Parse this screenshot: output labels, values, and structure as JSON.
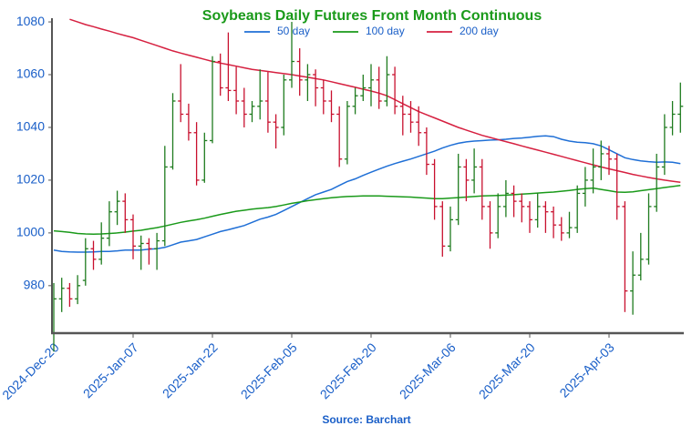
{
  "chart_data": {
    "type": "ohlc",
    "title": "Soybeans Daily Futures Front Month Continuous",
    "source": "Source: Barchart",
    "categories": [
      "2024-Dec-20",
      null,
      null,
      null,
      null,
      null,
      null,
      null,
      null,
      null,
      "2025-Jan-07",
      null,
      null,
      null,
      null,
      null,
      null,
      null,
      null,
      null,
      "2025-Jan-22",
      null,
      null,
      null,
      null,
      null,
      null,
      null,
      null,
      null,
      "2025-Feb-05",
      null,
      null,
      null,
      null,
      null,
      null,
      null,
      null,
      null,
      "2025-Feb-20",
      null,
      null,
      null,
      null,
      null,
      null,
      null,
      null,
      null,
      "2025-Mar-06",
      null,
      null,
      null,
      null,
      null,
      null,
      null,
      null,
      null,
      "2025-Mar-20",
      null,
      null,
      null,
      null,
      null,
      null,
      null,
      null,
      null,
      "2025-Apr-03",
      null,
      null,
      null,
      null,
      null,
      null,
      null,
      null,
      null
    ],
    "open": [
      962,
      975,
      979,
      975,
      982,
      994,
      990,
      998,
      1008,
      1012,
      1005,
      995,
      996,
      994,
      997,
      1025,
      1050,
      1045,
      1038,
      1020,
      1035,
      1065,
      1055,
      1054,
      1050,
      1045,
      1048,
      1050,
      1042,
      1040,
      1058,
      1065,
      1058,
      1060,
      1055,
      1050,
      1045,
      1028,
      1048,
      1052,
      1055,
      1058,
      1050,
      1060,
      1048,
      1045,
      1042,
      1038,
      1026,
      1010,
      995,
      1005,
      1025,
      1020,
      1025,
      1010,
      1000,
      1010,
      1015,
      1012,
      1010,
      1005,
      1010,
      1008,
      1003,
      1000,
      1002,
      1015,
      1020,
      1025,
      1030,
      1028,
      1010,
      978,
      984,
      990,
      1010,
      1025,
      1040,
      1045
    ],
    "high": [
      981,
      983,
      981,
      984,
      998,
      997,
      1004,
      1012,
      1016,
      1015,
      1007,
      999,
      998,
      1000,
      1033,
      1053,
      1064,
      1049,
      1042,
      1038,
      1067,
      1068,
      1076,
      1063,
      1055,
      1050,
      1062,
      1061,
      1045,
      1060,
      1080,
      1070,
      1064,
      1062,
      1058,
      1054,
      1048,
      1050,
      1055,
      1060,
      1064,
      1063,
      1067,
      1063,
      1052,
      1050,
      1048,
      1040,
      1028,
      1012,
      1010,
      1030,
      1028,
      1032,
      1028,
      1012,
      1015,
      1020,
      1018,
      1015,
      1012,
      1015,
      1012,
      1010,
      1006,
      1008,
      1018,
      1025,
      1032,
      1035,
      1033,
      1030,
      1012,
      993,
      1000,
      1015,
      1030,
      1045,
      1050,
      1057
    ],
    "low": [
      955,
      970,
      972,
      973,
      980,
      986,
      988,
      995,
      1003,
      1000,
      990,
      986,
      988,
      986,
      995,
      1024,
      1042,
      1035,
      1018,
      1019,
      1034,
      1052,
      1050,
      1045,
      1040,
      1042,
      1043,
      1038,
      1032,
      1037,
      1055,
      1052,
      1050,
      1048,
      1045,
      1042,
      1025,
      1026,
      1045,
      1050,
      1048,
      1047,
      1048,
      1045,
      1037,
      1038,
      1033,
      1022,
      1005,
      991,
      993,
      1003,
      1012,
      1015,
      1005,
      994,
      998,
      1006,
      1006,
      1004,
      1000,
      1002,
      1000,
      998,
      997,
      998,
      1000,
      1010,
      1015,
      1020,
      1022,
      1005,
      970,
      969,
      982,
      988,
      1008,
      1022,
      1037,
      1038
    ],
    "close": [
      975,
      979,
      975,
      980,
      994,
      990,
      998,
      1008,
      1012,
      1005,
      995,
      996,
      994,
      997,
      1025,
      1050,
      1045,
      1038,
      1020,
      1035,
      1065,
      1055,
      1054,
      1050,
      1045,
      1048,
      1050,
      1042,
      1040,
      1058,
      1065,
      1058,
      1060,
      1055,
      1050,
      1045,
      1028,
      1048,
      1052,
      1055,
      1058,
      1050,
      1060,
      1048,
      1045,
      1042,
      1038,
      1026,
      1010,
      995,
      1005,
      1025,
      1020,
      1025,
      1010,
      1000,
      1010,
      1015,
      1012,
      1010,
      1005,
      1010,
      1008,
      1003,
      1000,
      1002,
      1015,
      1020,
      1025,
      1030,
      1028,
      1010,
      978,
      984,
      990,
      1010,
      1025,
      1040,
      1045,
      1048
    ],
    "up_color": "#1e7b1e",
    "down_color": "#c8102e",
    "series": [
      {
        "name": "50 day",
        "color": "#1f6fd6",
        "values": [
          993.5,
          993,
          992.8,
          992.7,
          992.7,
          992.8,
          993,
          993,
          993.2,
          993.5,
          993.5,
          993.5,
          993.8,
          994,
          994.5,
          995.5,
          996.5,
          997,
          997.5,
          998.5,
          999.5,
          1000.5,
          1001.2,
          1002,
          1002.8,
          1004,
          1005.2,
          1006,
          1007,
          1008.5,
          1010,
          1011.5,
          1013,
          1014.5,
          1015.5,
          1016.5,
          1018,
          1019.5,
          1020.5,
          1021.8,
          1023,
          1024.2,
          1025.3,
          1026.3,
          1027.2,
          1028,
          1029,
          1030,
          1031,
          1032.2,
          1033.2,
          1034,
          1034.5,
          1034.8,
          1035,
          1035.2,
          1035.3,
          1035.5,
          1035.8,
          1036,
          1036.3,
          1036.6,
          1036.8,
          1036.5,
          1035.5,
          1034.8,
          1034.4,
          1034.2,
          1033.8,
          1033,
          1031.5,
          1030,
          1028.5,
          1027.8,
          1027.3,
          1027,
          1026.8,
          1026.9,
          1026.8,
          1026.3
        ]
      },
      {
        "name": "100 day",
        "color": "#1a9a1a",
        "values": [
          1000.8,
          1000.5,
          1000.2,
          999.8,
          999.6,
          999.5,
          999.6,
          999.8,
          1000,
          1000.3,
          1000.7,
          1001,
          1001.5,
          1002,
          1002.6,
          1003.3,
          1004,
          1004.5,
          1005,
          1005.6,
          1006.3,
          1007,
          1007.6,
          1008.2,
          1008.6,
          1009,
          1009.3,
          1009.6,
          1010,
          1010.6,
          1011.2,
          1011.7,
          1012.2,
          1012.6,
          1013,
          1013.3,
          1013.6,
          1013.8,
          1013.9,
          1014,
          1014,
          1014,
          1013.9,
          1013.8,
          1013.7,
          1013.6,
          1013.4,
          1013.2,
          1013,
          1013,
          1013.2,
          1013.4,
          1013.6,
          1013.8,
          1014,
          1014.1,
          1014.2,
          1014.3,
          1014.5,
          1014.7,
          1014.9,
          1015.1,
          1015.3,
          1015.5,
          1015.8,
          1016.1,
          1016.5,
          1016.8,
          1017,
          1016.5,
          1016,
          1015.5,
          1015.4,
          1015.6,
          1016,
          1016.4,
          1016.8,
          1017.2,
          1017.6,
          1018
        ]
      },
      {
        "name": "200 day",
        "color": "#d62040",
        "values": [
          null,
          null,
          1081,
          1080,
          1079,
          1078.2,
          1077.3,
          1076.5,
          1075.6,
          1074.8,
          1074,
          1073,
          1072,
          1071,
          1070,
          1069,
          1068.2,
          1067.4,
          1066.6,
          1065.8,
          1065,
          1064.4,
          1063.8,
          1063.2,
          1062.6,
          1062,
          1061.6,
          1061.2,
          1060.8,
          1060.4,
          1060,
          1059.5,
          1059,
          1058.5,
          1058,
          1057.3,
          1056.6,
          1055.9,
          1055.2,
          1054.5,
          1053.8,
          1053,
          1052,
          1050.5,
          1049,
          1047.5,
          1046,
          1044.8,
          1043.6,
          1042.4,
          1041.2,
          1040,
          1039,
          1038,
          1037,
          1036.2,
          1035.4,
          1034.6,
          1033.8,
          1033,
          1032.2,
          1031.4,
          1030.6,
          1029.8,
          1029,
          1028.2,
          1027.4,
          1026.6,
          1025.8,
          1025,
          1024.3,
          1023.6,
          1022.9,
          1022.2,
          1021.6,
          1021,
          1020.5,
          1020,
          1019.6,
          1019.2
        ]
      }
    ],
    "ylim": [
      962,
      1081.4
    ],
    "yticks": [
      980,
      1000,
      1020,
      1040,
      1060,
      1080
    ]
  }
}
